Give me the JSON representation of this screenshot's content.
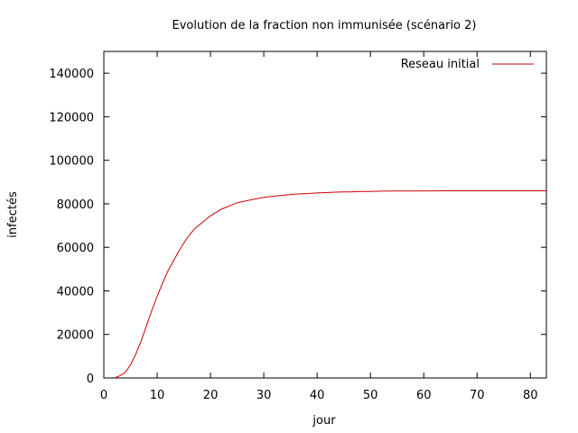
{
  "chart_data": {
    "type": "line",
    "title": "Evolution de la fraction non immunisée (scénario 2)",
    "xlabel": "jour",
    "ylabel": "infectés",
    "xlim": [
      0,
      83
    ],
    "ylim": [
      0,
      150000
    ],
    "xticks": [
      0,
      10,
      20,
      30,
      40,
      50,
      60,
      70,
      80
    ],
    "yticks": [
      0,
      20000,
      40000,
      60000,
      80000,
      100000,
      120000,
      140000
    ],
    "grid": false,
    "legend": "top-right",
    "series": [
      {
        "name": "Reseau initial",
        "color": "#cc0000",
        "x": [
          2,
          3,
          4,
          5,
          6,
          7,
          8,
          9,
          10,
          11,
          12,
          13,
          14,
          15,
          16,
          17,
          18,
          19,
          20,
          21,
          22,
          23,
          24,
          25,
          26,
          27,
          28,
          29,
          30,
          32,
          34,
          36,
          38,
          40,
          42,
          44,
          46,
          48,
          50,
          52,
          54,
          56,
          58,
          60,
          62,
          64,
          66,
          68,
          70,
          72,
          74,
          76,
          78,
          80,
          82,
          83
        ],
        "y": [
          0,
          1000,
          2500,
          6000,
          11000,
          17000,
          24000,
          31000,
          37500,
          43500,
          49000,
          53500,
          58000,
          62000,
          65500,
          68500,
          70500,
          72500,
          74500,
          76000,
          77500,
          78500,
          79500,
          80500,
          81000,
          81500,
          82000,
          82500,
          83000,
          83500,
          84000,
          84500,
          84700,
          85000,
          85200,
          85400,
          85500,
          85600,
          85700,
          85800,
          85850,
          85900,
          85900,
          85950,
          85950,
          86000,
          86000,
          86000,
          86000,
          86000,
          86000,
          86000,
          86000,
          86000,
          86000,
          86000
        ]
      }
    ]
  }
}
